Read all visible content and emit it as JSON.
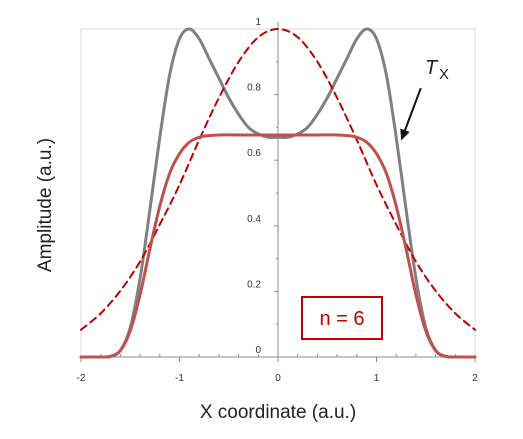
{
  "chart_data": {
    "type": "line",
    "title": "",
    "xlabel": "X coordinate (a.u.)",
    "ylabel": "Amplitude (a.u.)",
    "xlim": [
      -2,
      2
    ],
    "ylim": [
      0,
      1
    ],
    "xticks": [
      -2,
      -1,
      0,
      1,
      2
    ],
    "yticks": [
      0,
      0.2,
      0.4,
      0.6,
      0.8,
      1
    ],
    "xtick_labels": [
      "-2",
      "-1",
      "0",
      "1",
      "2"
    ],
    "ytick_labels": [
      "0",
      "0.2",
      "0.4",
      "0.6",
      "0.8",
      "1"
    ],
    "grid": false,
    "series": [
      {
        "color": "#808080",
        "style": "solid",
        "x": [
          -2,
          -1.8,
          -1.7,
          -1.6,
          -1.5,
          -1.4,
          -1.3,
          -1.2,
          -1.1,
          -1.0,
          -0.9,
          -0.8,
          -0.7,
          -0.6,
          -0.5,
          -0.4,
          -0.3,
          -0.2,
          -0.1,
          0,
          0.1,
          0.2,
          0.3,
          0.4,
          0.5,
          0.6,
          0.7,
          0.8,
          0.9,
          1.0,
          1.1,
          1.2,
          1.3,
          1.4,
          1.5,
          1.6,
          1.7,
          1.8,
          2
        ],
        "y": [
          0,
          0,
          0.002,
          0.02,
          0.09,
          0.24,
          0.45,
          0.67,
          0.86,
          0.97,
          1.0,
          0.97,
          0.91,
          0.85,
          0.79,
          0.74,
          0.7,
          0.68,
          0.67,
          0.67,
          0.67,
          0.68,
          0.7,
          0.74,
          0.79,
          0.85,
          0.91,
          0.97,
          1.0,
          0.97,
          0.86,
          0.67,
          0.45,
          0.24,
          0.09,
          0.02,
          0.002,
          0,
          0
        ]
      },
      {
        "color": "#c00000",
        "style": "dashed",
        "x": [
          -2,
          -1.8,
          -1.6,
          -1.4,
          -1.2,
          -1.0,
          -0.8,
          -0.6,
          -0.4,
          -0.2,
          0,
          0.2,
          0.4,
          0.6,
          0.8,
          1.0,
          1.2,
          1.4,
          1.6,
          1.8,
          2
        ],
        "y": [
          0.083,
          0.133,
          0.202,
          0.291,
          0.404,
          0.525,
          0.662,
          0.79,
          0.9,
          0.975,
          1.0,
          0.975,
          0.9,
          0.79,
          0.662,
          0.525,
          0.404,
          0.291,
          0.202,
          0.133,
          0.083
        ]
      },
      {
        "color": "#c0504d",
        "style": "solid",
        "x": [
          -2,
          -1.8,
          -1.7,
          -1.6,
          -1.5,
          -1.4,
          -1.3,
          -1.2,
          -1.1,
          -1.0,
          -0.9,
          -0.8,
          -0.7,
          -0.6,
          -0.4,
          -0.2,
          0,
          0.2,
          0.4,
          0.6,
          0.7,
          0.8,
          0.9,
          1.0,
          1.1,
          1.2,
          1.3,
          1.4,
          1.5,
          1.6,
          1.7,
          1.8,
          2
        ],
        "y": [
          0,
          0,
          0.002,
          0.02,
          0.08,
          0.19,
          0.33,
          0.46,
          0.56,
          0.62,
          0.655,
          0.67,
          0.675,
          0.677,
          0.677,
          0.677,
          0.677,
          0.677,
          0.677,
          0.677,
          0.675,
          0.67,
          0.655,
          0.62,
          0.56,
          0.46,
          0.33,
          0.19,
          0.08,
          0.02,
          0.002,
          0,
          0
        ]
      }
    ],
    "annotations": [
      {
        "text_main": "T",
        "text_sub": "X",
        "arrow_from": [
          1.45,
          0.82
        ],
        "arrow_to": [
          1.25,
          0.66
        ]
      }
    ],
    "legend_box": {
      "text": "n = 6",
      "color": "#c00000",
      "placement": "bottom-right"
    }
  }
}
